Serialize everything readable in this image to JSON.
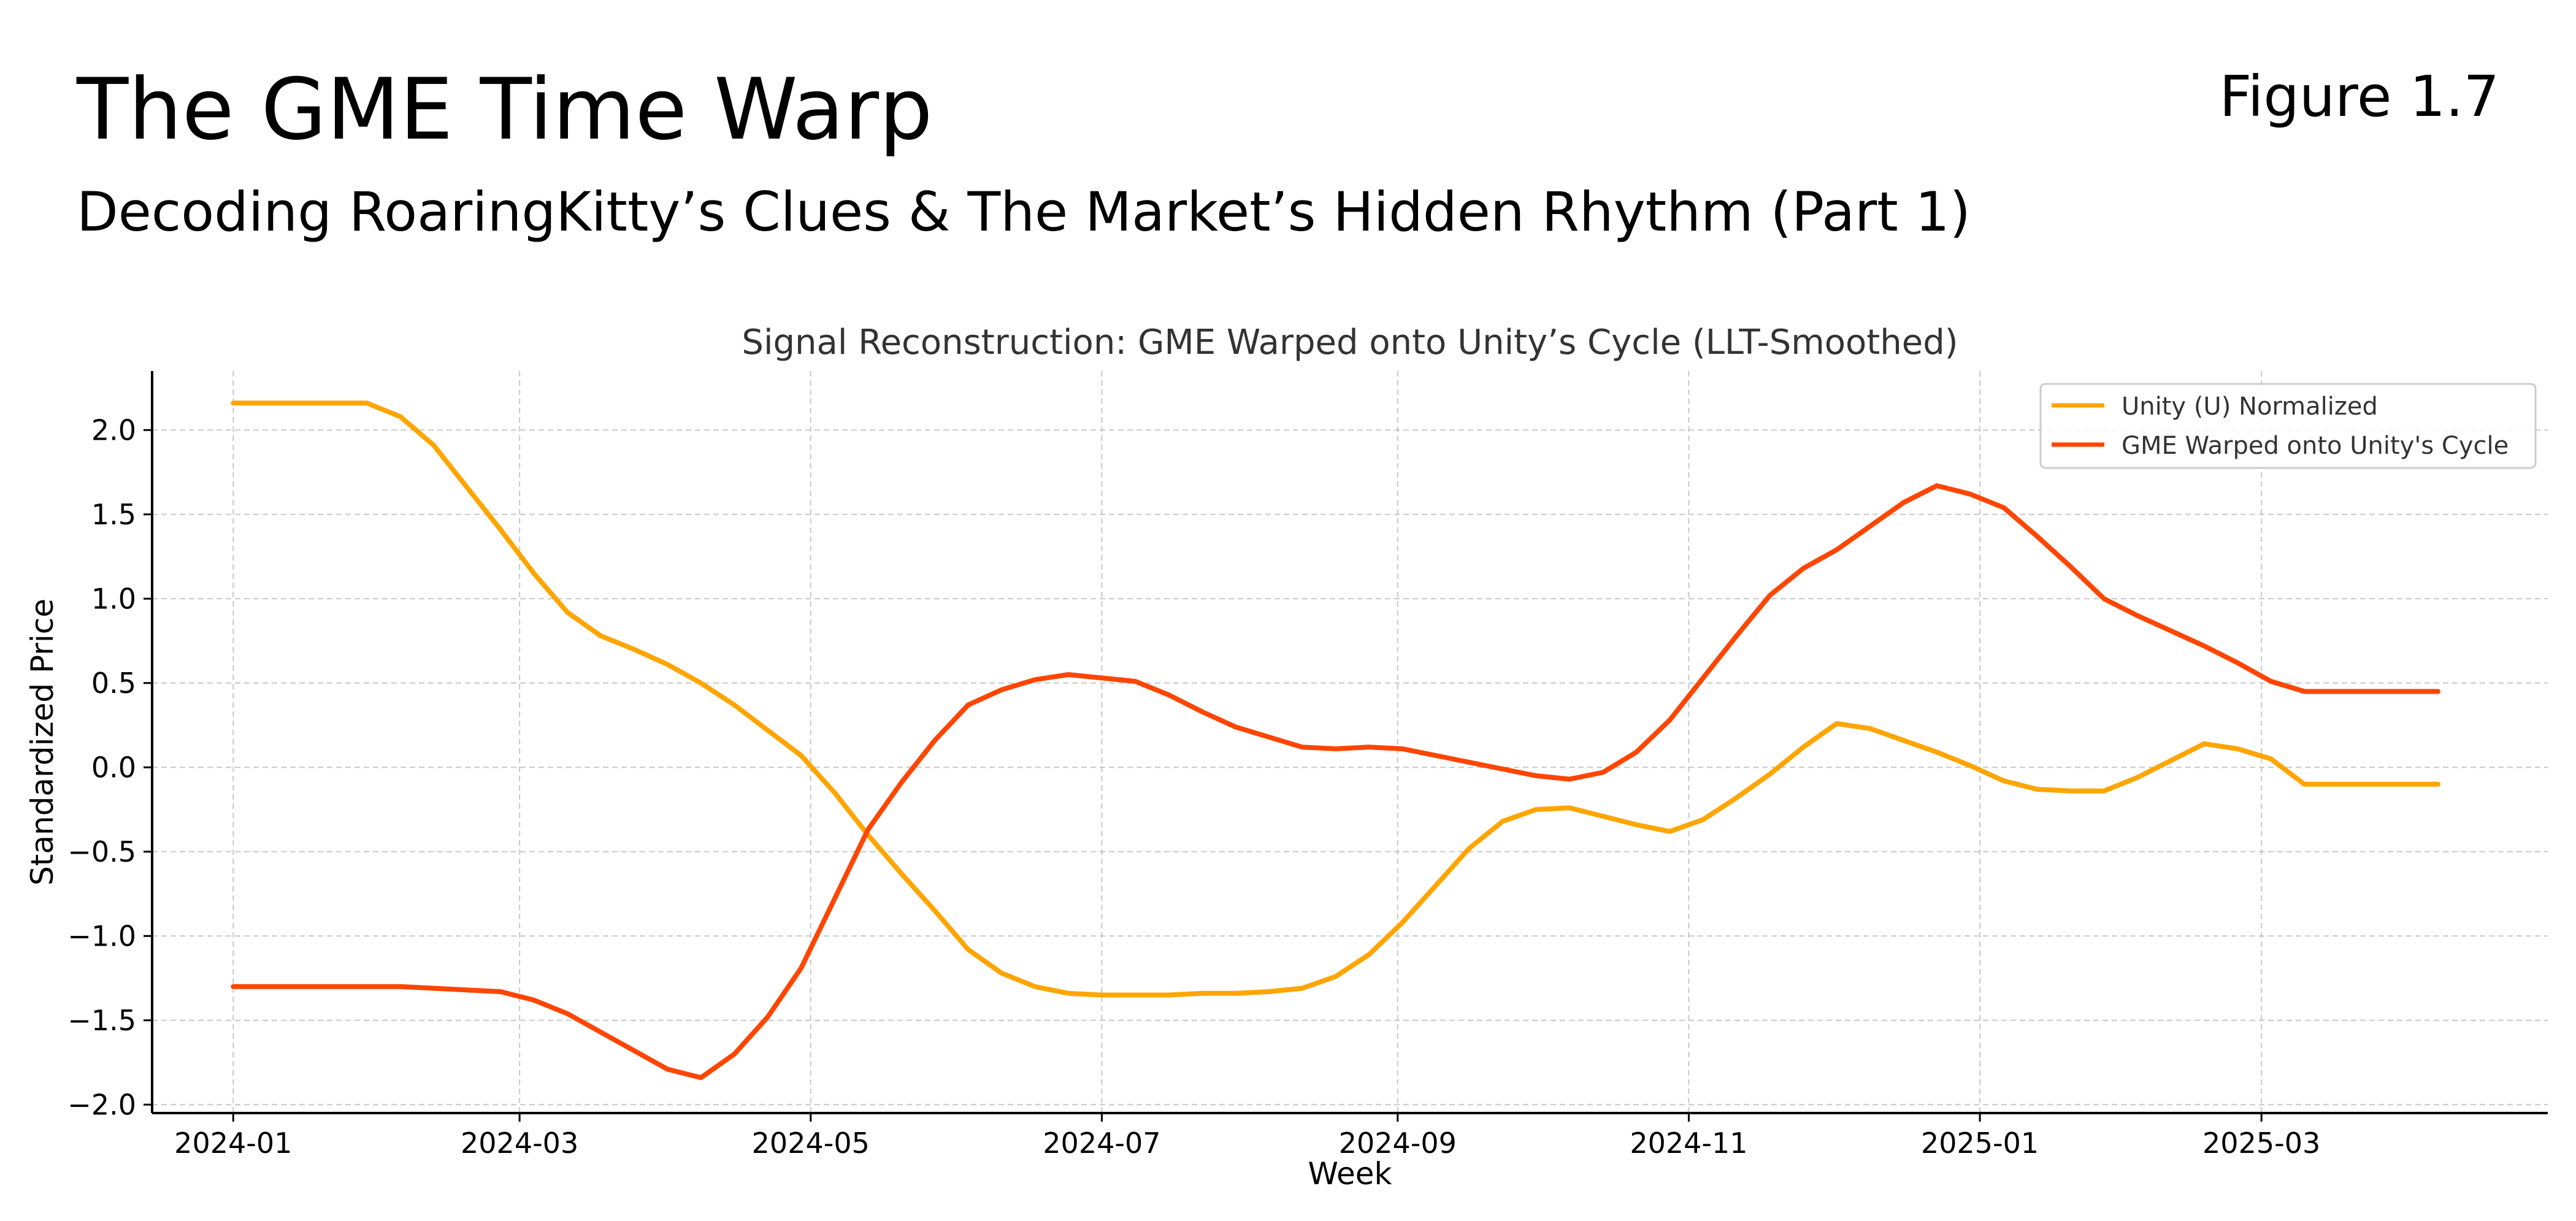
{
  "header": {
    "title": "The GME Time Warp",
    "subtitle": "Decoding RoaringKitty’s Clues & The Market’s Hidden Rhythm (Part 1)",
    "figure_label": "Figure 1.7"
  },
  "chart_data": {
    "type": "line",
    "title": "Signal Reconstruction: GME Warped onto Unity’s Cycle (LLT-Smoothed)",
    "xlabel": "Week",
    "ylabel": "Standardized Price",
    "x_range": [
      "2023-12-15",
      "2025-04-30"
    ],
    "ylim": [
      -2.05,
      2.35
    ],
    "grid": true,
    "legend_position": "upper-right",
    "x_ticks": [
      "2024-01",
      "2024-03",
      "2024-05",
      "2024-07",
      "2024-09",
      "2024-11",
      "2025-01",
      "2025-03"
    ],
    "y_ticks": [
      "2.0",
      "1.5",
      "1.0",
      "0.5",
      "0.0",
      "−0.5",
      "−1.0",
      "−1.5",
      "−2.0"
    ],
    "x": [
      "2024-01-01",
      "2024-01-08",
      "2024-01-15",
      "2024-01-22",
      "2024-01-29",
      "2024-02-05",
      "2024-02-12",
      "2024-02-19",
      "2024-02-26",
      "2024-03-04",
      "2024-03-11",
      "2024-03-18",
      "2024-03-25",
      "2024-04-01",
      "2024-04-08",
      "2024-04-15",
      "2024-04-22",
      "2024-04-29",
      "2024-05-06",
      "2024-05-13",
      "2024-05-20",
      "2024-05-27",
      "2024-06-03",
      "2024-06-10",
      "2024-06-17",
      "2024-06-24",
      "2024-07-01",
      "2024-07-08",
      "2024-07-15",
      "2024-07-22",
      "2024-07-29",
      "2024-08-05",
      "2024-08-12",
      "2024-08-19",
      "2024-08-26",
      "2024-09-02",
      "2024-09-09",
      "2024-09-16",
      "2024-09-23",
      "2024-09-30",
      "2024-10-07",
      "2024-10-14",
      "2024-10-21",
      "2024-10-28",
      "2024-11-04",
      "2024-11-11",
      "2024-11-18",
      "2024-11-25",
      "2024-12-02",
      "2024-12-09",
      "2024-12-16",
      "2024-12-23",
      "2024-12-30",
      "2025-01-06",
      "2025-01-13",
      "2025-01-20",
      "2025-01-27",
      "2025-02-03",
      "2025-02-10",
      "2025-02-17",
      "2025-02-24",
      "2025-03-03",
      "2025-03-10",
      "2025-03-17",
      "2025-03-24",
      "2025-03-31",
      "2025-04-07"
    ],
    "series": [
      {
        "name": "Unity (U) Normalized",
        "color": "#FFA500",
        "values": [
          2.16,
          2.16,
          2.16,
          2.16,
          2.16,
          2.08,
          1.91,
          1.66,
          1.41,
          1.15,
          0.92,
          0.78,
          0.7,
          0.61,
          0.5,
          0.37,
          0.22,
          0.07,
          -0.15,
          -0.4,
          -0.63,
          -0.85,
          -1.08,
          -1.22,
          -1.3,
          -1.34,
          -1.35,
          -1.35,
          -1.35,
          -1.34,
          -1.34,
          -1.33,
          -1.31,
          -1.24,
          -1.11,
          -0.92,
          -0.7,
          -0.48,
          -0.32,
          -0.25,
          -0.24,
          -0.29,
          -0.34,
          -0.38,
          -0.31,
          -0.18,
          -0.04,
          0.12,
          0.26,
          0.23,
          0.16,
          0.09,
          0.01,
          -0.08,
          -0.13,
          -0.14,
          -0.14,
          -0.06,
          0.04,
          0.14,
          0.11,
          0.05,
          -0.1,
          -0.1,
          -0.1,
          -0.1,
          -0.1
        ]
      },
      {
        "name": "GME Warped onto Unity's Cycle",
        "color": "#FF4500",
        "values": [
          -1.3,
          -1.3,
          -1.3,
          -1.3,
          -1.3,
          -1.3,
          -1.31,
          -1.32,
          -1.33,
          -1.38,
          -1.46,
          -1.57,
          -1.68,
          -1.79,
          -1.84,
          -1.7,
          -1.48,
          -1.19,
          -0.78,
          -0.37,
          -0.09,
          0.16,
          0.37,
          0.46,
          0.52,
          0.55,
          0.53,
          0.51,
          0.43,
          0.33,
          0.24,
          0.18,
          0.12,
          0.11,
          0.12,
          0.11,
          0.07,
          0.03,
          -0.01,
          -0.05,
          -0.07,
          -0.03,
          0.09,
          0.28,
          0.53,
          0.78,
          1.02,
          1.18,
          1.29,
          1.43,
          1.57,
          1.67,
          1.62,
          1.54,
          1.37,
          1.19,
          1.0,
          0.9,
          0.81,
          0.72,
          0.62,
          0.51,
          0.45,
          0.45,
          0.45,
          0.45,
          0.45
        ]
      }
    ]
  }
}
